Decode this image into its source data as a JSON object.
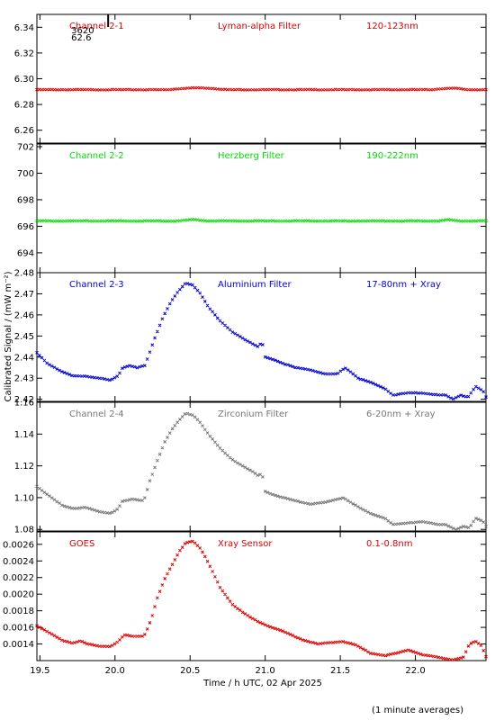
{
  "y_axis_title": "Calibrated Signal / (mW m⁻²)",
  "x_axis_title": "Time / h UTC, 02 Apr 2025",
  "footnote": "(1 minute averages)",
  "chart_data": [
    {
      "type": "scatter",
      "channel": "Channel 2-1",
      "filter": "Lyman-alpha Filter",
      "band": "120-123nm",
      "color": "#dd0000",
      "ylim": [
        6.25,
        6.35
      ],
      "yticks": [
        "6.26",
        "6.28",
        "6.30",
        "6.32",
        "6.34"
      ],
      "ytick_values": [
        6.26,
        6.28,
        6.3,
        6.32,
        6.34
      ],
      "annotation": {
        "lines": [
          "3620",
          "62.6"
        ],
        "x": 20.29,
        "y": 6.34
      },
      "curve": [
        [
          19.48,
          6.2915
        ],
        [
          20.35,
          6.2915
        ],
        [
          20.45,
          6.2925
        ],
        [
          20.55,
          6.293
        ],
        [
          20.65,
          6.2925
        ],
        [
          20.75,
          6.2915
        ],
        [
          22.1,
          6.2915
        ],
        [
          22.2,
          6.2925
        ],
        [
          22.27,
          6.2925
        ],
        [
          22.35,
          6.2915
        ],
        [
          22.47,
          6.2915
        ]
      ]
    },
    {
      "type": "scatter",
      "channel": "Channel 2-2",
      "filter": "Herzberg Filter",
      "band": "190-222nm",
      "color": "#00dd00",
      "ylim": [
        692.5,
        702.2
      ],
      "yticks": [
        "694",
        "696",
        "698",
        "700",
        "702"
      ],
      "ytick_values": [
        694,
        696,
        698,
        700,
        702
      ],
      "curve": [
        [
          19.48,
          696.4
        ],
        [
          20.4,
          696.4
        ],
        [
          20.52,
          696.5
        ],
        [
          20.62,
          696.4
        ],
        [
          22.15,
          696.4
        ],
        [
          22.22,
          696.5
        ],
        [
          22.28,
          696.4
        ],
        [
          22.47,
          696.4
        ]
      ]
    },
    {
      "type": "scatter",
      "channel": "Channel 2-3",
      "filter": "Aluminium Filter",
      "band": "17-80nm + Xray",
      "color": "#0000cc",
      "ylim": [
        2.419,
        2.48
      ],
      "yticks": [
        "2.42",
        "2.43",
        "2.44",
        "2.45",
        "2.46",
        "2.47",
        "2.48"
      ],
      "ytick_values": [
        2.42,
        2.43,
        2.44,
        2.45,
        2.46,
        2.47,
        2.48
      ],
      "curve": [
        [
          19.48,
          2.442
        ],
        [
          19.55,
          2.437
        ],
        [
          19.65,
          2.433
        ],
        [
          19.72,
          2.431
        ],
        [
          19.8,
          2.431
        ],
        [
          19.9,
          2.43
        ],
        [
          19.97,
          2.429
        ],
        [
          20.02,
          2.431
        ],
        [
          20.05,
          2.435
        ],
        [
          20.1,
          2.436
        ],
        [
          20.15,
          2.435
        ],
        [
          20.2,
          2.436
        ],
        [
          20.23,
          2.442
        ],
        [
          20.27,
          2.45
        ],
        [
          20.32,
          2.459
        ],
        [
          20.37,
          2.466
        ],
        [
          20.42,
          2.471
        ],
        [
          20.47,
          2.475
        ],
        [
          20.52,
          2.474
        ],
        [
          20.57,
          2.47
        ],
        [
          20.62,
          2.464
        ],
        [
          20.7,
          2.457
        ],
        [
          20.78,
          2.452
        ],
        [
          20.85,
          2.449
        ],
        [
          20.92,
          2.446
        ],
        [
          20.95,
          2.445
        ],
        [
          20.98,
          2.447
        ],
        [
          21.0,
          2.44
        ],
        [
          21.05,
          2.439
        ],
        [
          21.12,
          2.437
        ],
        [
          21.2,
          2.435
        ],
        [
          21.3,
          2.434
        ],
        [
          21.4,
          2.432
        ],
        [
          21.48,
          2.432
        ],
        [
          21.53,
          2.435
        ],
        [
          21.57,
          2.433
        ],
        [
          21.62,
          2.43
        ],
        [
          21.7,
          2.428
        ],
        [
          21.8,
          2.425
        ],
        [
          21.85,
          2.422
        ],
        [
          21.95,
          2.423
        ],
        [
          22.05,
          2.423
        ],
        [
          22.15,
          2.422
        ],
        [
          22.2,
          2.422
        ],
        [
          22.25,
          2.42
        ],
        [
          22.3,
          2.422
        ],
        [
          22.35,
          2.421
        ],
        [
          22.4,
          2.426
        ],
        [
          22.45,
          2.424
        ],
        [
          22.47,
          2.421
        ]
      ]
    },
    {
      "type": "scatter",
      "channel": "Channel 2-4",
      "filter": "Zirconium Filter",
      "band": "6-20nm + Xray",
      "color": "#777777",
      "ylim": [
        1.079,
        1.16
      ],
      "yticks": [
        "1.08",
        "1.10",
        "1.12",
        "1.14",
        "1.16"
      ],
      "ytick_values": [
        1.08,
        1.1,
        1.12,
        1.14,
        1.16
      ],
      "curve": [
        [
          19.48,
          1.107
        ],
        [
          19.55,
          1.102
        ],
        [
          19.65,
          1.095
        ],
        [
          19.72,
          1.093
        ],
        [
          19.8,
          1.094
        ],
        [
          19.9,
          1.091
        ],
        [
          19.97,
          1.09
        ],
        [
          20.02,
          1.093
        ],
        [
          20.05,
          1.098
        ],
        [
          20.12,
          1.099
        ],
        [
          20.18,
          1.098
        ],
        [
          20.2,
          1.1
        ],
        [
          20.23,
          1.11
        ],
        [
          20.28,
          1.123
        ],
        [
          20.33,
          1.135
        ],
        [
          20.38,
          1.143
        ],
        [
          20.43,
          1.149
        ],
        [
          20.47,
          1.153
        ],
        [
          20.52,
          1.152
        ],
        [
          20.57,
          1.147
        ],
        [
          20.62,
          1.14
        ],
        [
          20.7,
          1.131
        ],
        [
          20.78,
          1.124
        ],
        [
          20.85,
          1.12
        ],
        [
          20.92,
          1.116
        ],
        [
          20.95,
          1.114
        ],
        [
          20.98,
          1.115
        ],
        [
          21.0,
          1.104
        ],
        [
          21.05,
          1.102
        ],
        [
          21.12,
          1.1
        ],
        [
          21.2,
          1.098
        ],
        [
          21.3,
          1.096
        ],
        [
          21.4,
          1.097
        ],
        [
          21.48,
          1.099
        ],
        [
          21.52,
          1.1
        ],
        [
          21.57,
          1.097
        ],
        [
          21.62,
          1.094
        ],
        [
          21.7,
          1.09
        ],
        [
          21.8,
          1.087
        ],
        [
          21.85,
          1.083
        ],
        [
          21.95,
          1.084
        ],
        [
          22.05,
          1.085
        ],
        [
          22.15,
          1.083
        ],
        [
          22.2,
          1.083
        ],
        [
          22.27,
          1.08
        ],
        [
          22.32,
          1.082
        ],
        [
          22.36,
          1.081
        ],
        [
          22.4,
          1.087
        ],
        [
          22.45,
          1.085
        ],
        [
          22.47,
          1.082
        ]
      ]
    },
    {
      "type": "scatter",
      "channel": "GOES",
      "filter": "Xray Sensor",
      "band": "0.1-0.8nm",
      "color": "#dd0000",
      "ylim": [
        0.0012,
        0.00275
      ],
      "yticks": [
        "0.0014",
        "0.0016",
        "0.0018",
        "0.0020",
        "0.0022",
        "0.0024",
        "0.0026"
      ],
      "ytick_values": [
        0.0014,
        0.0016,
        0.0018,
        0.002,
        0.0022,
        0.0024,
        0.0026
      ],
      "curve": [
        [
          19.48,
          0.00162
        ],
        [
          19.55,
          0.00155
        ],
        [
          19.65,
          0.00144
        ],
        [
          19.72,
          0.00141
        ],
        [
          19.77,
          0.00144
        ],
        [
          19.82,
          0.0014
        ],
        [
          19.9,
          0.00137
        ],
        [
          19.97,
          0.00137
        ],
        [
          20.02,
          0.00143
        ],
        [
          20.06,
          0.00151
        ],
        [
          20.12,
          0.00149
        ],
        [
          20.18,
          0.00149
        ],
        [
          20.2,
          0.00152
        ],
        [
          20.22,
          0.0016
        ],
        [
          20.25,
          0.00175
        ],
        [
          20.28,
          0.00195
        ],
        [
          20.33,
          0.00218
        ],
        [
          20.38,
          0.00235
        ],
        [
          20.43,
          0.00252
        ],
        [
          20.47,
          0.00262
        ],
        [
          20.52,
          0.00264
        ],
        [
          20.57,
          0.00255
        ],
        [
          20.62,
          0.00238
        ],
        [
          20.7,
          0.00208
        ],
        [
          20.78,
          0.00188
        ],
        [
          20.85,
          0.00178
        ],
        [
          20.92,
          0.0017
        ],
        [
          21.0,
          0.00163
        ],
        [
          21.12,
          0.00155
        ],
        [
          21.25,
          0.00145
        ],
        [
          21.35,
          0.0014
        ],
        [
          21.45,
          0.00142
        ],
        [
          21.52,
          0.00143
        ],
        [
          21.6,
          0.00139
        ],
        [
          21.7,
          0.00129
        ],
        [
          21.8,
          0.00126
        ],
        [
          21.9,
          0.0013
        ],
        [
          21.95,
          0.00133
        ],
        [
          22.05,
          0.00127
        ],
        [
          22.15,
          0.00124
        ],
        [
          22.25,
          0.00121
        ],
        [
          22.32,
          0.00124
        ],
        [
          22.36,
          0.0014
        ],
        [
          22.4,
          0.00143
        ],
        [
          22.44,
          0.00138
        ],
        [
          22.47,
          0.00125
        ]
      ]
    }
  ],
  "x_axis": {
    "xlim": [
      19.48,
      22.47
    ],
    "ticks": [
      "19.5",
      "20.0",
      "20.5",
      "21.0",
      "21.5",
      "22.0"
    ],
    "tick_values": [
      19.5,
      20.0,
      20.5,
      21.0,
      21.5,
      22.0
    ]
  }
}
